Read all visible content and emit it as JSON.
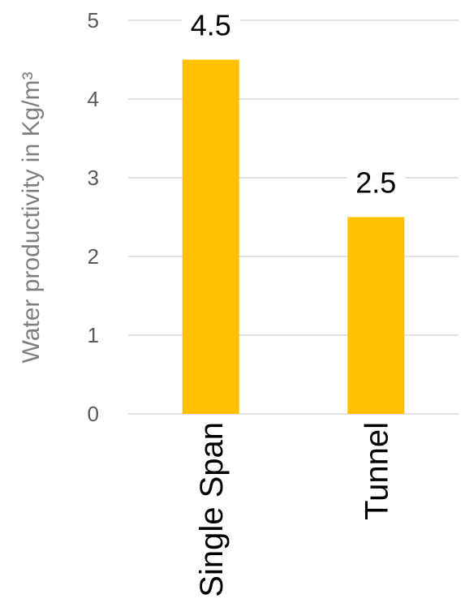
{
  "chart_data": {
    "type": "bar",
    "categories": [
      "Single Span",
      "Tunnel"
    ],
    "values": [
      4.5,
      2.5
    ],
    "data_labels": [
      "4.5",
      "2.5"
    ],
    "title": "",
    "xlabel": "",
    "ylabel": "Water productivity in Kg/m³",
    "ylim": [
      0,
      5
    ],
    "yticks": [
      "0",
      "1",
      "2",
      "3",
      "4",
      "5"
    ],
    "grid": true,
    "legend": "none",
    "bar_color": "#ffc000"
  }
}
